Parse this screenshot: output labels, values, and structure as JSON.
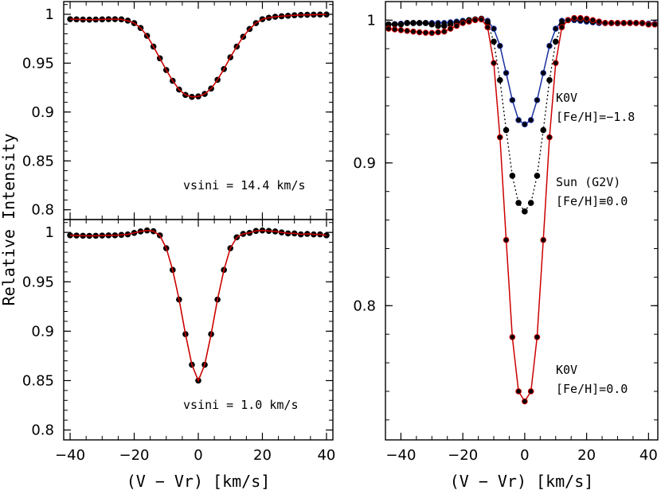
{
  "figure": {
    "ylabel": "Relative Intensity",
    "xlabel": "(V − Vr) [km/s]"
  },
  "chart_data": [
    {
      "panel": "top-left",
      "type": "line",
      "xlabel": "",
      "ylabel": "",
      "xlim": [
        -42,
        42
      ],
      "ylim": [
        0.79,
        1.013
      ],
      "xticks": [
        -40,
        -20,
        0,
        20,
        40
      ],
      "yticks": [
        0.8,
        0.85,
        0.9,
        0.95,
        1
      ],
      "ytick_labels": [
        "0.8",
        "0.85",
        "0.9",
        "0.95",
        "1"
      ],
      "show_x_tick_labels": false,
      "annotation": "vsini = 14.4 km/s",
      "series": [
        {
          "role": "observed",
          "marker": "dot",
          "color": "#000000",
          "x": [
            -40,
            -38,
            -36,
            -34,
            -32,
            -30,
            -28,
            -26,
            -24,
            -22,
            -20,
            -18,
            -16,
            -14,
            -12,
            -10,
            -8,
            -6,
            -4,
            -2,
            0,
            2,
            4,
            6,
            8,
            10,
            12,
            14,
            16,
            18,
            20,
            22,
            24,
            26,
            28,
            30,
            32,
            34,
            36,
            38,
            40
          ],
          "y": [
            0.995,
            0.9948,
            0.9946,
            0.9945,
            0.9946,
            0.9948,
            0.995,
            0.995,
            0.9948,
            0.9935,
            0.991,
            0.986,
            0.978,
            0.967,
            0.955,
            0.943,
            0.932,
            0.923,
            0.9175,
            0.9155,
            0.916,
            0.9185,
            0.924,
            0.933,
            0.944,
            0.956,
            0.967,
            0.977,
            0.985,
            0.991,
            0.995,
            0.9965,
            0.9975,
            0.998,
            0.9985,
            0.999,
            0.9993,
            0.9995,
            0.9996,
            0.9997,
            0.9998
          ]
        },
        {
          "role": "fit",
          "marker": "line",
          "color": "#cc0000",
          "x": [
            -40,
            -38,
            -36,
            -34,
            -32,
            -30,
            -28,
            -26,
            -24,
            -22,
            -20,
            -18,
            -16,
            -14,
            -12,
            -10,
            -8,
            -6,
            -4,
            -2,
            0,
            2,
            4,
            6,
            8,
            10,
            12,
            14,
            16,
            18,
            20,
            22,
            24,
            26,
            28,
            30,
            32,
            34,
            36,
            38,
            40
          ],
          "y": [
            0.995,
            0.9948,
            0.9946,
            0.9945,
            0.9946,
            0.9948,
            0.995,
            0.995,
            0.9948,
            0.9935,
            0.991,
            0.986,
            0.978,
            0.967,
            0.955,
            0.943,
            0.932,
            0.923,
            0.9175,
            0.9155,
            0.916,
            0.9185,
            0.924,
            0.933,
            0.944,
            0.956,
            0.967,
            0.977,
            0.985,
            0.991,
            0.995,
            0.9965,
            0.9975,
            0.998,
            0.9985,
            0.999,
            0.9993,
            0.9995,
            0.9996,
            0.9997,
            0.9998
          ]
        }
      ]
    },
    {
      "panel": "bottom-left",
      "type": "line",
      "xlabel": "(V − Vr) [km/s]",
      "ylabel": "",
      "xlim": [
        -42,
        42
      ],
      "ylim": [
        0.79,
        1.013
      ],
      "xticks": [
        -40,
        -20,
        0,
        20,
        40
      ],
      "yticks": [
        0.8,
        0.85,
        0.9,
        0.95,
        1
      ],
      "ytick_labels": [
        "0.8",
        "0.85",
        "0.9",
        "0.95",
        "1"
      ],
      "show_x_tick_labels": true,
      "annotation": "vsini = 1.0 km/s",
      "series": [
        {
          "role": "observed",
          "marker": "dot",
          "color": "#000000",
          "x": [
            -40,
            -38,
            -36,
            -34,
            -32,
            -30,
            -28,
            -26,
            -24,
            -22,
            -20,
            -18,
            -16,
            -14,
            -12,
            -10,
            -8,
            -6,
            -4,
            -2,
            0,
            2,
            4,
            6,
            8,
            10,
            12,
            14,
            16,
            18,
            20,
            22,
            24,
            26,
            28,
            30,
            32,
            34,
            36,
            38,
            40
          ],
          "y": [
            0.997,
            0.9968,
            0.9966,
            0.9965,
            0.9966,
            0.9968,
            0.997,
            0.997,
            0.9975,
            0.998,
            0.9995,
            1.001,
            1.002,
            1.0012,
            0.997,
            0.984,
            0.962,
            0.932,
            0.897,
            0.866,
            0.85,
            0.866,
            0.897,
            0.932,
            0.962,
            0.984,
            0.995,
            0.9985,
            0.9995,
            1.0015,
            1.002,
            1.0015,
            1.001,
            1.0,
            0.999,
            0.999,
            0.998,
            0.9985,
            0.998,
            0.998,
            0.997
          ]
        },
        {
          "role": "fit",
          "marker": "line",
          "color": "#cc0000",
          "x": [
            -40,
            -38,
            -36,
            -34,
            -32,
            -30,
            -28,
            -26,
            -24,
            -22,
            -20,
            -18,
            -16,
            -14,
            -12,
            -10,
            -8,
            -6,
            -4,
            -2,
            0,
            2,
            4,
            6,
            8,
            10,
            12,
            14,
            16,
            18,
            20,
            22,
            24,
            26,
            28,
            30,
            32,
            34,
            36,
            38,
            40
          ],
          "y": [
            0.997,
            0.9968,
            0.9966,
            0.9965,
            0.9966,
            0.9968,
            0.997,
            0.997,
            0.9975,
            0.998,
            0.9995,
            1.001,
            1.002,
            1.0012,
            0.997,
            0.984,
            0.962,
            0.932,
            0.897,
            0.866,
            0.85,
            0.866,
            0.897,
            0.932,
            0.962,
            0.984,
            0.995,
            0.9985,
            0.9995,
            1.0015,
            1.002,
            1.0015,
            1.001,
            1.0,
            0.999,
            0.999,
            0.998,
            0.9985,
            0.998,
            0.998,
            0.997
          ]
        }
      ]
    },
    {
      "panel": "right",
      "type": "line",
      "xlabel": "(V − Vr) [km/s]",
      "ylabel": "",
      "xlim": [
        -45,
        43
      ],
      "ylim": [
        0.706,
        1.013
      ],
      "xticks": [
        -40,
        -20,
        0,
        20,
        40
      ],
      "yticks": [
        0.8,
        0.9,
        1
      ],
      "ytick_labels": [
        "0.8",
        "0.9",
        "1"
      ],
      "show_x_tick_labels": true,
      "annotation": "",
      "series": [
        {
          "label": "K0V [Fe/H]=−1.8",
          "marker": "dot+line",
          "color": "#1a2fa0",
          "x": [
            -44,
            -42,
            -40,
            -38,
            -36,
            -34,
            -32,
            -30,
            -28,
            -26,
            -24,
            -22,
            -20,
            -18,
            -16,
            -14,
            -12,
            -10,
            -8,
            -6,
            -4,
            -2,
            0,
            2,
            4,
            6,
            8,
            10,
            12,
            14,
            16,
            18,
            20,
            22,
            24,
            26,
            28,
            30,
            32,
            34,
            36,
            38,
            40,
            42
          ],
          "y": [
            0.997,
            0.9972,
            0.9975,
            0.998,
            0.998,
            0.998,
            0.998,
            0.998,
            0.998,
            0.998,
            0.9985,
            0.999,
            0.9995,
            1.0,
            1.0005,
            1.001,
            0.9995,
            0.994,
            0.982,
            0.963,
            0.944,
            0.93,
            0.927,
            0.93,
            0.944,
            0.963,
            0.982,
            0.994,
            0.9995,
            1.0,
            1.0,
            0.9995,
            0.999,
            0.9985,
            0.998,
            0.998,
            0.998,
            0.9978,
            0.998,
            0.9982,
            0.998,
            0.9978,
            0.9976,
            0.9975
          ]
        },
        {
          "label": "Sun (G2V) [Fe/H]≡0.0",
          "marker": "dot+dotted",
          "color": "#000000",
          "x": [
            -44,
            -42,
            -40,
            -38,
            -36,
            -34,
            -32,
            -30,
            -28,
            -26,
            -24,
            -22,
            -20,
            -18,
            -16,
            -14,
            -12,
            -10,
            -8,
            -6,
            -4,
            -2,
            0,
            2,
            4,
            6,
            8,
            10,
            12,
            14,
            16,
            18,
            20,
            22,
            24,
            26,
            28,
            30,
            32,
            34,
            36,
            38,
            40,
            42
          ],
          "y": [
            0.997,
            0.997,
            0.997,
            0.998,
            0.998,
            0.998,
            0.998,
            0.997,
            0.996,
            0.996,
            0.997,
            0.998,
            0.999,
            1.0,
            1.0005,
            1.001,
            0.998,
            0.985,
            0.958,
            0.923,
            0.891,
            0.872,
            0.866,
            0.872,
            0.891,
            0.923,
            0.958,
            0.985,
            0.997,
            1.0,
            1.001,
            1.0005,
            1.0,
            0.999,
            0.999,
            0.998,
            0.998,
            0.998,
            0.998,
            0.998,
            0.998,
            0.998,
            0.997,
            0.997
          ]
        },
        {
          "label": "K0V [Fe/H]=0.0",
          "marker": "dot+line",
          "color": "#cc0000",
          "x": [
            -44,
            -42,
            -40,
            -38,
            -36,
            -34,
            -32,
            -30,
            -28,
            -26,
            -24,
            -22,
            -20,
            -18,
            -16,
            -14,
            -12,
            -10,
            -8,
            -6,
            -4,
            -2,
            0,
            2,
            4,
            6,
            8,
            10,
            12,
            14,
            16,
            18,
            20,
            22,
            24,
            26,
            28,
            30,
            32,
            34,
            36,
            38,
            40,
            42
          ],
          "y": [
            0.994,
            0.9935,
            0.993,
            0.9925,
            0.992,
            0.9915,
            0.9912,
            0.991,
            0.9915,
            0.992,
            0.994,
            0.996,
            0.998,
            0.999,
            1.0,
            1.0005,
            0.995,
            0.97,
            0.918,
            0.846,
            0.778,
            0.74,
            0.733,
            0.74,
            0.778,
            0.846,
            0.918,
            0.97,
            0.995,
            1.0,
            1.0015,
            1.0015,
            1.001,
            1.0,
            0.999,
            0.998,
            0.998,
            0.998,
            0.998,
            0.998,
            0.998,
            0.998,
            0.997,
            0.997
          ]
        }
      ],
      "labels": [
        {
          "line1": "K0V",
          "line2": "[Fe/H]=−1.8"
        },
        {
          "line1": "Sun (G2V)",
          "line2": "[Fe/H]≡0.0"
        },
        {
          "line1": "K0V",
          "line2": "[Fe/H]=0.0"
        }
      ]
    }
  ]
}
